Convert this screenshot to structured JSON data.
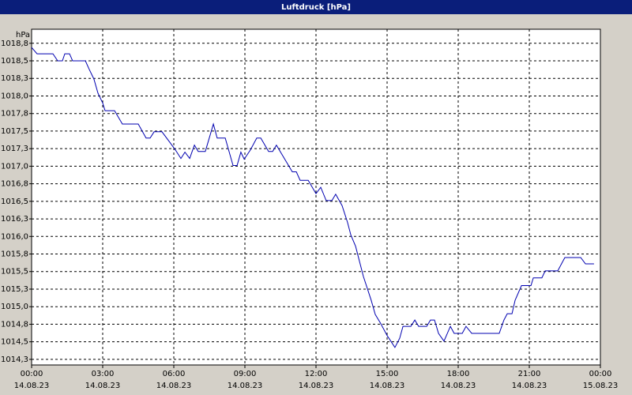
{
  "chart_data": {
    "type": "line",
    "title": "Luftdruck [hPa]",
    "y_label": "hPa",
    "xlim": [
      0,
      24
    ],
    "xticks": [
      {
        "value": 0,
        "label": "00:00"
      },
      {
        "value": 3,
        "label": "03:00"
      },
      {
        "value": 6,
        "label": "06:00"
      },
      {
        "value": 9,
        "label": "09:00"
      },
      {
        "value": 12,
        "label": "12:00"
      },
      {
        "value": 15,
        "label": "15:00"
      },
      {
        "value": 18,
        "label": "18:00"
      },
      {
        "value": 21,
        "label": "21:00"
      },
      {
        "value": 24,
        "label": "00:00"
      }
    ],
    "xtick_dates": [
      "14.08.23",
      "14.08.23",
      "14.08.23",
      "14.08.23",
      "14.08.23",
      "14.08.23",
      "14.08.23",
      "14.08.23",
      "15.08.23"
    ],
    "ylim": [
      1014.17,
      1018.95
    ],
    "yticks": [
      {
        "value": 1018.75,
        "label": "1018,8"
      },
      {
        "value": 1018.5,
        "label": "1018,5"
      },
      {
        "value": 1018.25,
        "label": "1018,3"
      },
      {
        "value": 1018.0,
        "label": "1018,0"
      },
      {
        "value": 1017.75,
        "label": "1017,8"
      },
      {
        "value": 1017.5,
        "label": "1017,5"
      },
      {
        "value": 1017.25,
        "label": "1017,3"
      },
      {
        "value": 1017.0,
        "label": "1017,0"
      },
      {
        "value": 1016.75,
        "label": "1016,8"
      },
      {
        "value": 1016.5,
        "label": "1016,5"
      },
      {
        "value": 1016.25,
        "label": "1016,3"
      },
      {
        "value": 1016.0,
        "label": "1016,0"
      },
      {
        "value": 1015.75,
        "label": "1015,8"
      },
      {
        "value": 1015.5,
        "label": "1015,5"
      },
      {
        "value": 1015.25,
        "label": "1015,3"
      },
      {
        "value": 1015.0,
        "label": "1015,0"
      },
      {
        "value": 1014.75,
        "label": "1014,8"
      },
      {
        "value": 1014.5,
        "label": "1014,5"
      },
      {
        "value": 1014.25,
        "label": "1014,3"
      }
    ],
    "grid": true,
    "x": [
      0,
      0.23,
      0.9,
      1.1,
      1.3,
      1.4,
      1.6,
      1.73,
      2.27,
      2.43,
      2.63,
      2.8,
      3.0,
      3.1,
      3.5,
      3.83,
      4.5,
      4.83,
      5.0,
      5.17,
      5.5,
      5.83,
      6.07,
      6.3,
      6.47,
      6.67,
      6.87,
      7.03,
      7.33,
      7.67,
      7.83,
      8.17,
      8.5,
      8.67,
      8.83,
      8.97,
      9.23,
      9.5,
      9.67,
      10.0,
      10.17,
      10.33,
      11.0,
      11.17,
      11.33,
      11.67,
      12.0,
      12.2,
      12.43,
      12.67,
      12.83,
      13.1,
      13.33,
      13.47,
      13.67,
      14.0,
      14.33,
      14.5,
      14.73,
      15.0,
      15.33,
      15.53,
      15.67,
      16.0,
      16.17,
      16.33,
      16.67,
      16.83,
      17.0,
      17.17,
      17.4,
      17.67,
      17.83,
      18.17,
      18.33,
      18.57,
      19.73,
      19.93,
      20.07,
      20.27,
      20.4,
      20.67,
      21.07,
      21.17,
      21.53,
      21.67,
      22.2,
      22.5,
      23.17,
      23.37,
      23.73
    ],
    "series": [
      {
        "color": "#0000b0",
        "values": [
          1018.69,
          1018.6,
          1018.6,
          1018.5,
          1018.5,
          1018.6,
          1018.6,
          1018.5,
          1018.5,
          1018.38,
          1018.24,
          1018.04,
          1017.9,
          1017.79,
          1017.79,
          1017.6,
          1017.6,
          1017.4,
          1017.4,
          1017.49,
          1017.49,
          1017.34,
          1017.23,
          1017.11,
          1017.2,
          1017.11,
          1017.3,
          1017.21,
          1017.21,
          1017.6,
          1017.4,
          1017.4,
          1017.01,
          1017.01,
          1017.2,
          1017.1,
          1017.23,
          1017.4,
          1017.4,
          1017.21,
          1017.21,
          1017.3,
          1016.92,
          1016.92,
          1016.8,
          1016.8,
          1016.61,
          1016.7,
          1016.51,
          1016.51,
          1016.6,
          1016.44,
          1016.2,
          1016.02,
          1015.86,
          1015.43,
          1015.09,
          1014.89,
          1014.76,
          1014.59,
          1014.42,
          1014.55,
          1014.72,
          1014.72,
          1014.81,
          1014.72,
          1014.72,
          1014.81,
          1014.81,
          1014.62,
          1014.51,
          1014.72,
          1014.62,
          1014.62,
          1014.72,
          1014.62,
          1014.62,
          1014.81,
          1014.9,
          1014.9,
          1015.09,
          1015.3,
          1015.3,
          1015.41,
          1015.41,
          1015.51,
          1015.51,
          1015.7,
          1015.7,
          1015.61,
          1015.61
        ]
      }
    ]
  }
}
